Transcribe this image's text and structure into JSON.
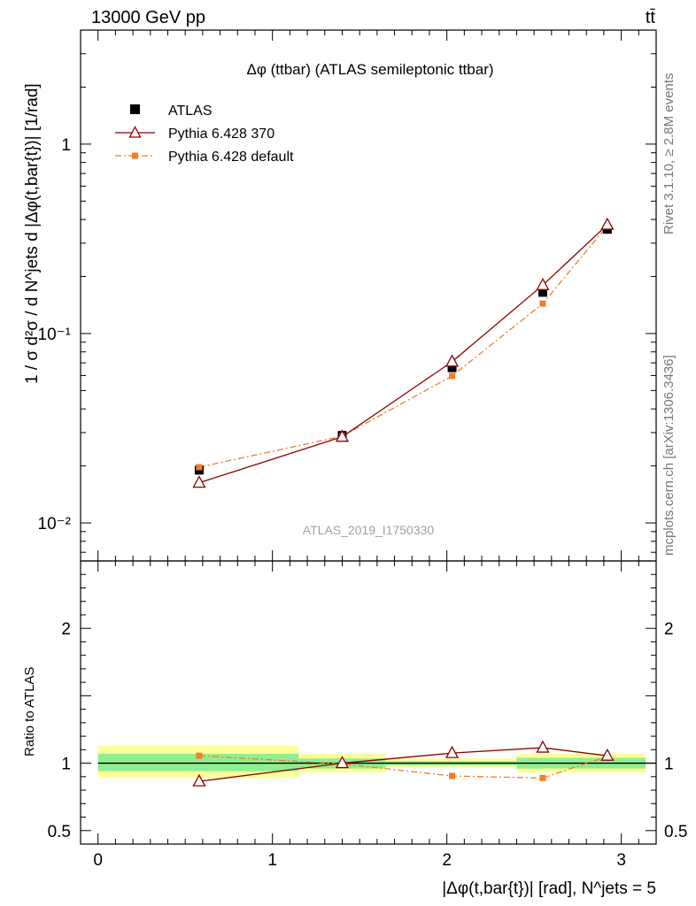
{
  "header": {
    "left": "13000 GeV pp",
    "right": "tt̄"
  },
  "side_labels": {
    "right_top": "Rivet 3.1.10, ≥ 2.8M events",
    "right_bottom": "mcplots.cern.ch [arXiv:1306.3436]"
  },
  "chart_data": [
    {
      "type": "line",
      "title": "Δφ (ttbar) (ATLAS semileptonic ttbar)",
      "watermark": "ATLAS_2019_I1750330",
      "ylabel": "1 / σ d²σ / d N^jets d |Δφ(t,bar{t})| [1/rad]",
      "yscale": "log",
      "ylim": [
        0.0063,
        4.0
      ],
      "xlim": [
        -0.1,
        3.2
      ],
      "yticks": [
        {
          "value": 0.01,
          "label": "10⁻²"
        },
        {
          "value": 0.1,
          "label": "10⁻¹"
        },
        {
          "value": 1,
          "label": "1"
        }
      ],
      "legend_position": "top-left",
      "x": [
        0.58,
        1.4,
        2.03,
        2.55,
        2.92
      ],
      "series": [
        {
          "name": "ATLAS",
          "values": [
            0.019,
            0.029,
            0.066,
            0.165,
            0.355
          ],
          "color": "#000000",
          "marker": "filled-square"
        },
        {
          "name": "Pythia 6.428 370",
          "values": [
            0.0163,
            0.0285,
            0.071,
            0.18,
            0.375
          ],
          "color": "#8b0000",
          "marker": "open-triangle"
        },
        {
          "name": "Pythia 6.428 default",
          "values": [
            0.0197,
            0.0287,
            0.0597,
            0.144,
            0.37
          ],
          "color": "#f27d2a",
          "marker": "small-square"
        }
      ]
    },
    {
      "type": "line",
      "ylabel": "Ratio to ATLAS",
      "xlabel": "|Δφ(t,bar{t})| [rad], N^jets = 5",
      "ylim": [
        0.4,
        2.5
      ],
      "xlim": [
        -0.1,
        3.2
      ],
      "xticks": [
        0,
        1,
        2,
        3
      ],
      "yticks": [
        0.5,
        1,
        2
      ],
      "bins": [
        {
          "lo": 0.0,
          "hi": 1.15,
          "inner": [
            0.94,
            1.07
          ],
          "outer": [
            0.89,
            1.13
          ]
        },
        {
          "lo": 1.15,
          "hi": 1.65,
          "inner": [
            0.96,
            1.035
          ],
          "outer": [
            0.93,
            1.07
          ]
        },
        {
          "lo": 1.65,
          "hi": 2.4,
          "inner": [
            0.985,
            1.015
          ],
          "outer": [
            0.97,
            1.035
          ]
        },
        {
          "lo": 2.4,
          "hi": 3.14,
          "inner": [
            0.96,
            1.04
          ],
          "outer": [
            0.93,
            1.07
          ]
        }
      ],
      "x": [
        0.58,
        1.4,
        2.03,
        2.55,
        2.92
      ],
      "series": [
        {
          "name": "Pythia 6.428 370",
          "values": [
            0.865,
            1.0,
            1.075,
            1.115,
            1.055
          ]
        },
        {
          "name": "Pythia 6.428 default",
          "values": [
            1.055,
            0.995,
            0.905,
            0.89,
            1.05
          ]
        }
      ],
      "band_colors": {
        "inner": "#90ee90",
        "outer": "#ffff99"
      }
    }
  ]
}
